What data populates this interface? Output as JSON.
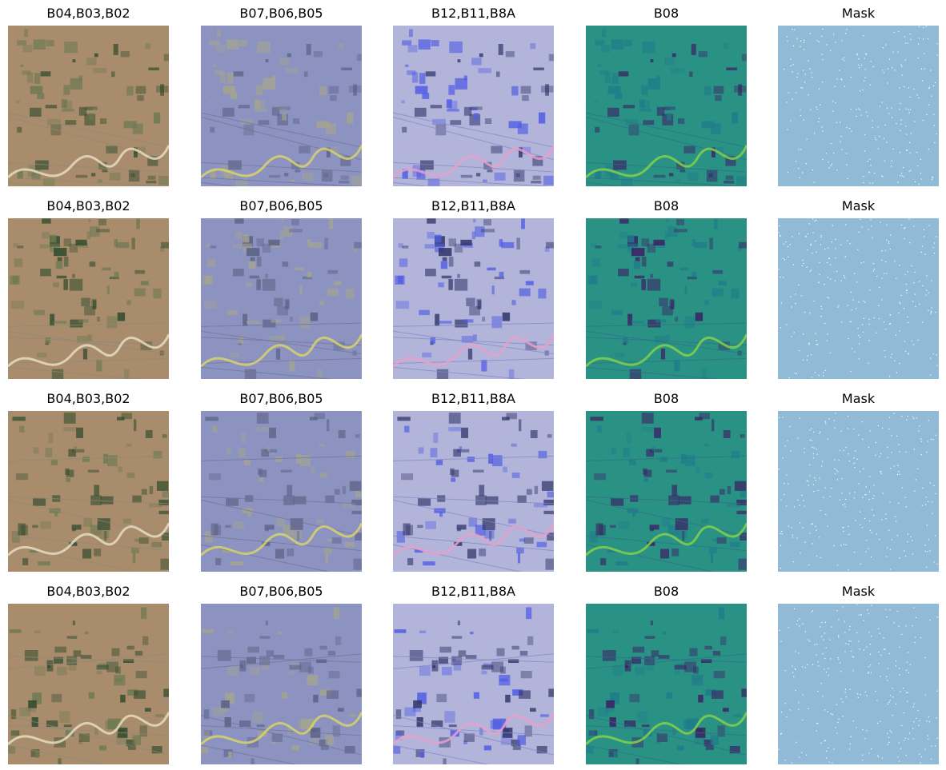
{
  "figure": {
    "columns": [
      {
        "title": "B04,B03,B02",
        "kind": "rgb",
        "palette": {
          "bg": "#a88c6c",
          "dark": "#2f4a2c",
          "mid": "#6e7a52",
          "line": "#8d8a7a",
          "river": "#e6dcc0"
        }
      },
      {
        "title": "B07,B06,B05",
        "kind": "nir",
        "palette": {
          "bg": "#8c93c0",
          "dark": "#5a5f82",
          "mid": "#a5a58e",
          "line": "#6d7396",
          "river": "#d7d36a"
        }
      },
      {
        "title": "B12,B11,B8A",
        "kind": "swir",
        "palette": {
          "bg": "#b2b4da",
          "dark": "#2f3366",
          "mid": "#4f5ce3",
          "line": "#7f86c2",
          "river": "#e7a0c9"
        }
      },
      {
        "title": "B08",
        "kind": "single",
        "palette": {
          "bg": "#2a9185",
          "dark": "#3c1e63",
          "mid": "#1f7c8a",
          "line": "#2d6f88",
          "river": "#84d04a"
        }
      },
      {
        "title": "Mask",
        "kind": "mask",
        "palette": {
          "bg": "#91bad6",
          "dark": "#ffffff",
          "mid": "#ffffff",
          "line": "#ffffff",
          "river": "#ffffff"
        }
      }
    ],
    "rows": 4
  }
}
